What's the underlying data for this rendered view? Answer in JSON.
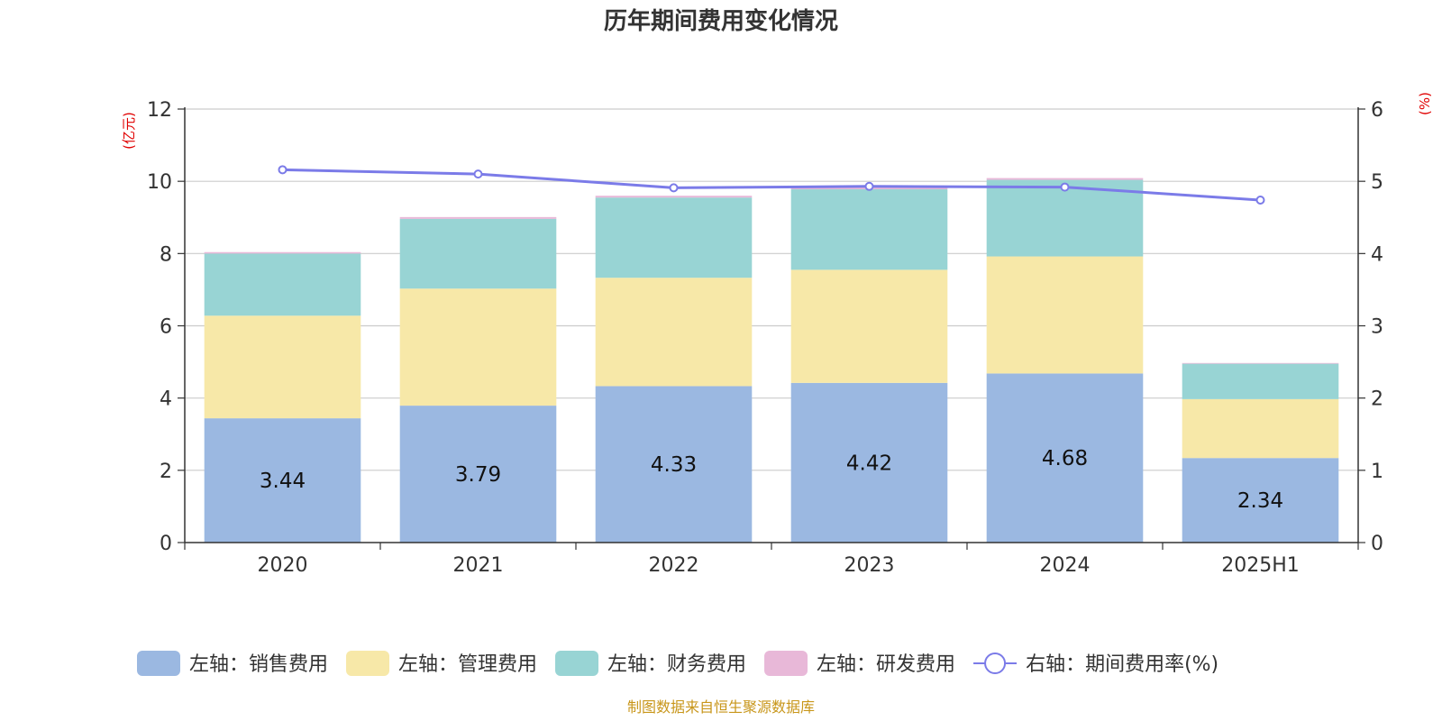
{
  "chart_data": {
    "type": "bar",
    "title": "历年期间费用变化情况",
    "categories": [
      "2020",
      "2021",
      "2022",
      "2023",
      "2024",
      "2025H1"
    ],
    "series": [
      {
        "name": "左轴：销售费用",
        "axis": "left",
        "type": "bar",
        "color": "#9bb8e1",
        "values": [
          3.44,
          3.79,
          4.33,
          4.42,
          4.68,
          2.34
        ]
      },
      {
        "name": "左轴：管理费用",
        "axis": "left",
        "type": "bar",
        "color": "#f7e8a8",
        "values": [
          2.84,
          3.24,
          3.0,
          3.13,
          3.24,
          1.63
        ]
      },
      {
        "name": "左轴：财务费用",
        "axis": "left",
        "type": "bar",
        "color": "#98d4d4",
        "values": [
          1.72,
          1.93,
          2.22,
          2.23,
          2.12,
          0.98
        ]
      },
      {
        "name": "左轴：研发费用",
        "axis": "left",
        "type": "bar",
        "color": "#e8b8d8",
        "values": [
          0.04,
          0.05,
          0.05,
          0.05,
          0.05,
          0.02
        ]
      },
      {
        "name": "右轴：期间费用率(%)",
        "axis": "right",
        "type": "line",
        "color": "#7b7be8",
        "values": [
          5.16,
          5.1,
          4.91,
          4.93,
          4.92,
          4.74
        ]
      }
    ],
    "data_labels": [
      "3.44",
      "3.79",
      "4.33",
      "4.42",
      "4.68",
      "2.34"
    ],
    "y_left": {
      "unit": "(亿元)",
      "ylim": [
        0,
        12
      ],
      "ticks": [
        "0",
        "2",
        "4",
        "6",
        "8",
        "10",
        "12"
      ]
    },
    "y_right": {
      "unit": "(%)",
      "ylim": [
        0,
        6
      ],
      "ticks": [
        "0",
        "1",
        "2",
        "3",
        "4",
        "5",
        "6"
      ]
    },
    "grid": true,
    "legend_position": "bottom"
  },
  "source_note": "制图数据来自恒生聚源数据库"
}
